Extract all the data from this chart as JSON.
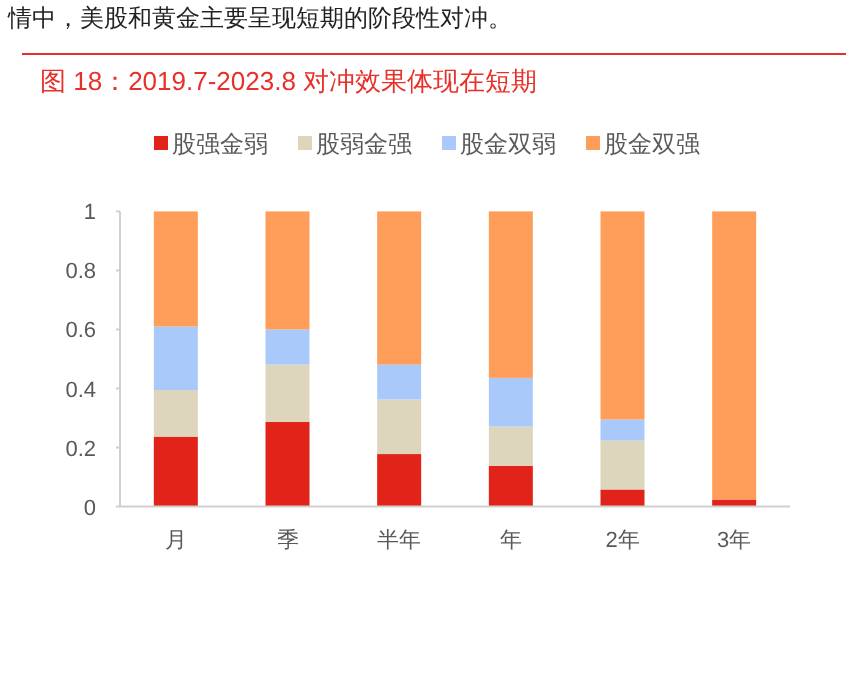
{
  "chart_data": {
    "type": "bar",
    "stacked": true,
    "title": "图 18：2019.7-2023.8 对冲效果体现在短期",
    "annotations": [
      "情中，美股和黄金主要呈现短期的阶段性对冲。"
    ],
    "categories": [
      "月",
      "季",
      "半年",
      "年",
      "2年",
      "3年"
    ],
    "series": [
      {
        "name": "股强金弱",
        "color": "#e2231a",
        "values": [
          0.237,
          0.287,
          0.178,
          0.138,
          0.058,
          0.024
        ]
      },
      {
        "name": "股弱金强",
        "color": "#ded5bd",
        "values": [
          0.158,
          0.194,
          0.185,
          0.133,
          0.166,
          0
        ]
      },
      {
        "name": "股金双弱",
        "color": "#a9c9fb",
        "values": [
          0.215,
          0.119,
          0.118,
          0.165,
          0.071,
          0
        ]
      },
      {
        "name": "股金双强",
        "color": "#ff9e5a",
        "values": [
          0.39,
          0.4,
          0.519,
          0.564,
          0.705,
          0.976
        ]
      }
    ],
    "ylim": [
      0,
      1
    ],
    "yticks": [
      0,
      0.2,
      0.4,
      0.6,
      0.8,
      1
    ],
    "legend": "top",
    "grid": false
  }
}
